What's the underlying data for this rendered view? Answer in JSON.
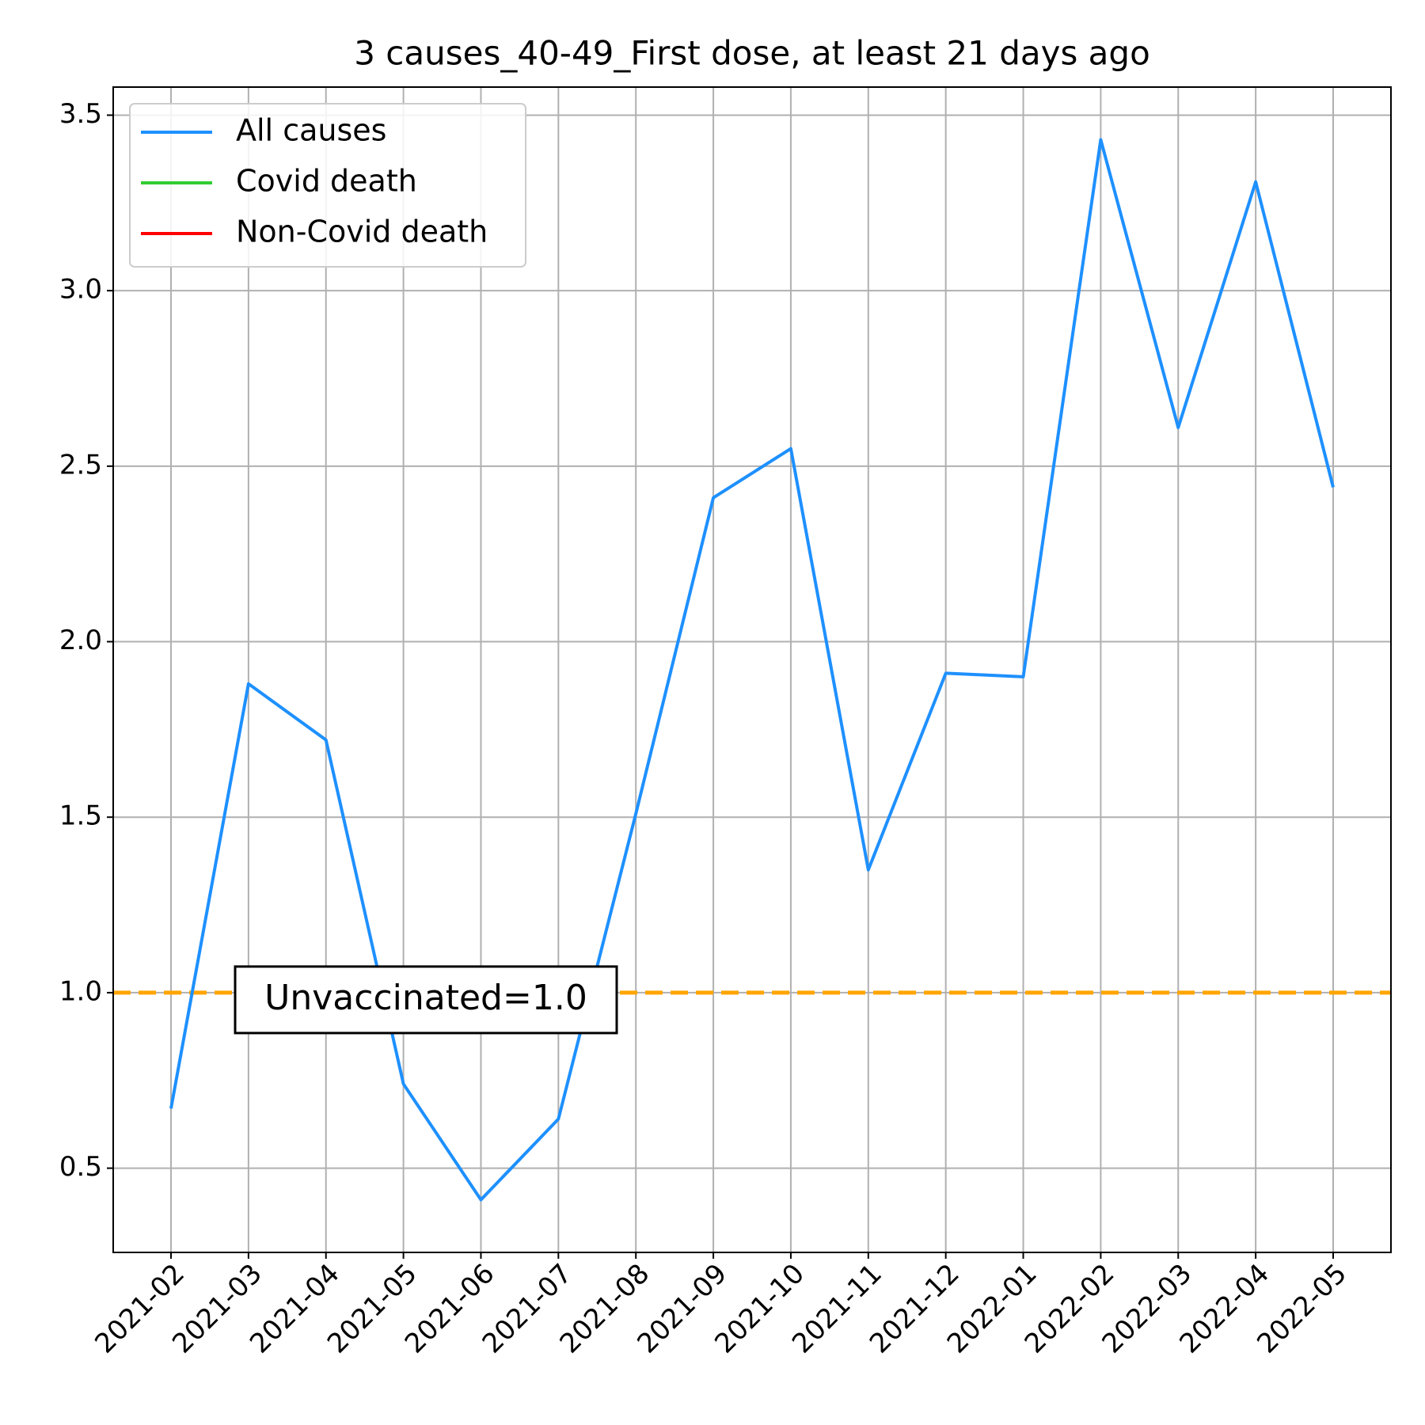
{
  "chart_data": {
    "type": "line",
    "title": "3 causes_40-49_First dose, at least 21 days ago",
    "categories": [
      "2021-02",
      "2021-03",
      "2021-04",
      "2021-05",
      "2021-06",
      "2021-07",
      "2021-08",
      "2021-09",
      "2021-10",
      "2021-11",
      "2021-12",
      "2022-01",
      "2022-02",
      "2022-03",
      "2022-04",
      "2022-05"
    ],
    "series": [
      {
        "name": "All causes",
        "color": "#1e90ff",
        "values": [
          0.67,
          1.88,
          1.72,
          0.74,
          0.41,
          0.64,
          1.51,
          2.41,
          2.55,
          1.35,
          1.91,
          1.9,
          3.43,
          2.61,
          3.31,
          2.44
        ]
      },
      {
        "name": "Covid death",
        "color": "#32cd32",
        "values": [
          null,
          null,
          null,
          null,
          null,
          null,
          null,
          null,
          null,
          null,
          null,
          null,
          null,
          null,
          null,
          null
        ]
      },
      {
        "name": "Non-Covid death",
        "color": "#ff0000",
        "values": [
          null,
          null,
          null,
          null,
          null,
          null,
          null,
          null,
          null,
          null,
          null,
          null,
          null,
          null,
          null,
          null
        ]
      }
    ],
    "ylim": [
      0.26,
      3.58
    ],
    "yticks": [
      0.5,
      {
        "value": 1.0,
        "label": "1.0"
      },
      1.5,
      {
        "value": 2.0,
        "label": "2.0"
      },
      2.5,
      {
        "value": 3.0,
        "label": "3.0"
      },
      3.5
    ],
    "grid": true,
    "legend": "upper left",
    "hline": {
      "value": 1.0,
      "color": "#ffa500"
    },
    "annotation": {
      "text": "Unvaccinated=1.0",
      "color": "#ffa500"
    }
  }
}
